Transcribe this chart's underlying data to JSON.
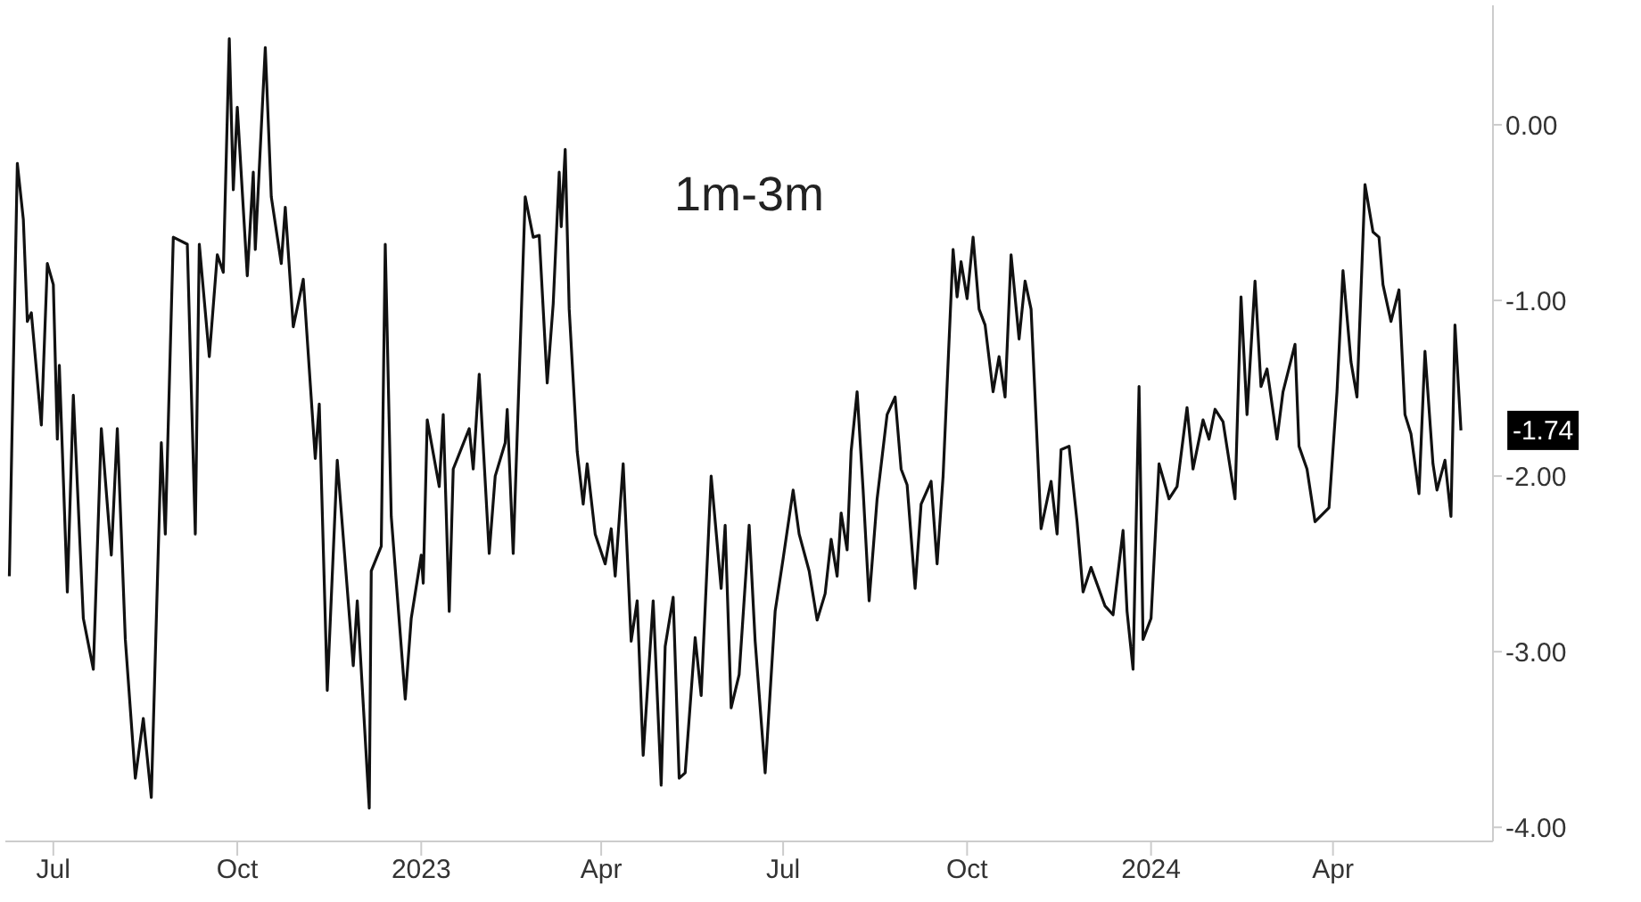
{
  "chart_data": {
    "type": "line",
    "title": "1m-3m",
    "x": [
      "2022-06-09",
      "2022-06-10",
      "2022-06-13",
      "2022-06-16",
      "2022-06-18",
      "2022-06-20",
      "2022-06-25",
      "2022-06-28",
      "2022-07-01",
      "2022-07-03",
      "2022-07-04",
      "2022-07-08",
      "2022-07-11",
      "2022-07-16",
      "2022-07-21",
      "2022-07-25",
      "2022-07-30",
      "2022-08-02",
      "2022-08-06",
      "2022-08-11",
      "2022-08-15",
      "2022-08-19",
      "2022-08-24",
      "2022-08-26",
      "2022-08-30",
      "2022-09-06",
      "2022-09-10",
      "2022-09-12",
      "2022-09-17",
      "2022-09-21",
      "2022-09-24",
      "2022-09-27",
      "2022-09-29",
      "2022-10-01",
      "2022-10-06",
      "2022-10-09",
      "2022-10-10",
      "2022-10-15",
      "2022-10-18",
      "2022-10-23",
      "2022-10-25",
      "2022-10-29",
      "2022-11-03",
      "2022-11-06",
      "2022-11-09",
      "2022-11-11",
      "2022-11-15",
      "2022-11-20",
      "2022-11-28",
      "2022-11-30",
      "2022-12-06",
      "2022-12-07",
      "2022-12-12",
      "2022-12-14",
      "2022-12-17",
      "2022-12-24",
      "2022-12-27",
      "2023-01-01",
      "2023-01-02",
      "2023-01-04",
      "2023-01-10",
      "2023-01-12",
      "2023-01-15",
      "2023-01-17",
      "2023-01-25",
      "2023-01-27",
      "2023-01-30",
      "2023-02-04",
      "2023-02-07",
      "2023-02-12",
      "2023-02-13",
      "2023-02-16",
      "2023-02-22",
      "2023-02-26",
      "2023-03-01",
      "2023-03-05",
      "2023-03-08",
      "2023-03-11",
      "2023-03-12",
      "2023-03-14",
      "2023-03-16",
      "2023-03-20",
      "2023-03-23",
      "2023-03-25",
      "2023-03-29",
      "2023-04-03",
      "2023-04-06",
      "2023-04-08",
      "2023-04-12",
      "2023-04-16",
      "2023-04-19",
      "2023-04-22",
      "2023-04-27",
      "2023-05-01",
      "2023-05-03",
      "2023-05-07",
      "2023-05-10",
      "2023-05-13",
      "2023-05-18",
      "2023-05-21",
      "2023-05-26",
      "2023-05-31",
      "2023-06-02",
      "2023-06-05",
      "2023-06-09",
      "2023-06-14",
      "2023-06-17",
      "2023-06-22",
      "2023-06-27",
      "2023-07-01",
      "2023-07-06",
      "2023-07-09",
      "2023-07-14",
      "2023-07-18",
      "2023-07-22",
      "2023-07-25",
      "2023-07-28",
      "2023-07-30",
      "2023-08-02",
      "2023-08-04",
      "2023-08-07",
      "2023-08-10",
      "2023-08-13",
      "2023-08-17",
      "2023-08-22",
      "2023-08-26",
      "2023-08-29",
      "2023-09-01",
      "2023-09-05",
      "2023-09-08",
      "2023-09-13",
      "2023-09-16",
      "2023-09-19",
      "2023-09-24",
      "2023-09-26",
      "2023-09-28",
      "2023-10-01",
      "2023-10-04",
      "2023-10-07",
      "2023-10-10",
      "2023-10-14",
      "2023-10-17",
      "2023-10-20",
      "2023-10-23",
      "2023-10-27",
      "2023-10-30",
      "2023-11-02",
      "2023-11-07",
      "2023-11-12",
      "2023-11-15",
      "2023-11-17",
      "2023-11-21",
      "2023-11-25",
      "2023-11-28",
      "2023-12-02",
      "2023-12-09",
      "2023-12-13",
      "2023-12-18",
      "2023-12-20",
      "2023-12-23",
      "2023-12-26",
      "2023-12-28",
      "2024-01-01",
      "2024-01-05",
      "2024-01-10",
      "2024-01-14",
      "2024-01-19",
      "2024-01-22",
      "2024-01-27",
      "2024-01-30",
      "2024-02-02",
      "2024-02-06",
      "2024-02-12",
      "2024-02-15",
      "2024-02-18",
      "2024-02-22",
      "2024-02-25",
      "2024-02-28",
      "2024-03-04",
      "2024-03-07",
      "2024-03-13",
      "2024-03-15",
      "2024-03-19",
      "2024-03-23",
      "2024-03-30",
      "2024-04-03",
      "2024-04-06",
      "2024-04-10",
      "2024-04-13",
      "2024-04-17",
      "2024-04-21",
      "2024-04-24",
      "2024-04-26",
      "2024-04-30",
      "2024-05-04",
      "2024-05-07",
      "2024-05-10",
      "2024-05-14",
      "2024-05-17",
      "2024-05-21",
      "2024-05-23",
      "2024-05-27",
      "2024-05-30",
      "2024-06-01",
      "2024-06-04"
    ],
    "series": [
      {
        "color": "#111111",
        "values": [
          -2.57,
          -1.96,
          -0.22,
          -0.54,
          -1.12,
          -1.07,
          -1.71,
          -0.79,
          -0.91,
          -1.79,
          -1.37,
          -2.66,
          -1.54,
          -2.81,
          -3.1,
          -1.73,
          -2.45,
          -1.73,
          -2.93,
          -3.72,
          -3.38,
          -3.83,
          -1.81,
          -2.33,
          -0.64,
          -0.68,
          -2.33,
          -0.68,
          -1.32,
          -0.74,
          -0.84,
          0.49,
          -0.37,
          0.1,
          -0.86,
          -0.27,
          -0.71,
          0.44,
          -0.41,
          -0.79,
          -0.47,
          -1.15,
          -0.88,
          -1.39,
          -1.9,
          -1.59,
          -3.22,
          -1.91,
          -3.08,
          -2.71,
          -3.89,
          -2.54,
          -2.4,
          -0.68,
          -2.23,
          -3.27,
          -2.81,
          -2.45,
          -2.61,
          -1.68,
          -2.06,
          -1.65,
          -2.77,
          -1.96,
          -1.73,
          -1.96,
          -1.42,
          -2.44,
          -2.0,
          -1.81,
          -1.62,
          -2.44,
          -0.41,
          -0.64,
          -0.63,
          -1.47,
          -1.02,
          -0.27,
          -0.58,
          -0.14,
          -1.05,
          -1.86,
          -2.16,
          -1.93,
          -2.33,
          -2.5,
          -2.3,
          -2.57,
          -1.93,
          -2.94,
          -2.71,
          -3.59,
          -2.71,
          -3.76,
          -2.97,
          -2.69,
          -3.72,
          -3.69,
          -2.92,
          -3.25,
          -2.0,
          -2.64,
          -2.28,
          -3.32,
          -3.13,
          -2.28,
          -2.94,
          -3.69,
          -2.77,
          -2.47,
          -2.08,
          -2.33,
          -2.54,
          -2.82,
          -2.67,
          -2.36,
          -2.57,
          -2.21,
          -2.42,
          -1.86,
          -1.52,
          -2.08,
          -2.71,
          -2.13,
          -1.65,
          -1.55,
          -1.96,
          -2.05,
          -2.64,
          -2.16,
          -2.03,
          -2.5,
          -2.0,
          -0.71,
          -0.98,
          -0.78,
          -0.99,
          -0.64,
          -1.05,
          -1.14,
          -1.52,
          -1.32,
          -1.55,
          -0.74,
          -1.22,
          -0.89,
          -1.05,
          -2.3,
          -2.03,
          -2.33,
          -1.85,
          -1.83,
          -2.26,
          -2.66,
          -2.52,
          -2.74,
          -2.79,
          -2.31,
          -2.77,
          -3.1,
          -1.49,
          -2.93,
          -2.81,
          -1.93,
          -2.13,
          -2.06,
          -1.61,
          -1.96,
          -1.68,
          -1.79,
          -1.62,
          -1.69,
          -2.13,
          -0.98,
          -1.65,
          -0.89,
          -1.49,
          -1.39,
          -1.79,
          -1.52,
          -1.25,
          -1.83,
          -1.96,
          -2.26,
          -2.18,
          -1.52,
          -0.83,
          -1.35,
          -1.55,
          -0.34,
          -0.61,
          -0.64,
          -0.91,
          -1.12,
          -0.94,
          -1.65,
          -1.76,
          -2.1,
          -1.29,
          -1.93,
          -2.08,
          -1.91,
          -2.23,
          -1.14,
          -1.74
        ]
      }
    ],
    "xlim": [
      "2022-06-07",
      "2024-06-20"
    ],
    "xticks": [
      {
        "value": "2022-07-01",
        "label": "Jul"
      },
      {
        "value": "2022-10-01",
        "label": "Oct"
      },
      {
        "value": "2023-01-01",
        "label": "2023"
      },
      {
        "value": "2023-04-01",
        "label": "Apr"
      },
      {
        "value": "2023-07-01",
        "label": "Jul"
      },
      {
        "value": "2023-10-01",
        "label": "Oct"
      },
      {
        "value": "2024-01-01",
        "label": "2024"
      },
      {
        "value": "2024-04-01",
        "label": "Apr"
      }
    ],
    "ylim": [
      -4.08,
      0.68
    ],
    "yticks": [
      {
        "value": 0,
        "label": "0.00"
      },
      {
        "value": -1,
        "label": "-1.00"
      },
      {
        "value": -2,
        "label": "-2.00"
      },
      {
        "value": -3,
        "label": "-3.00"
      },
      {
        "value": -4,
        "label": "-4.00"
      }
    ],
    "annotations": [
      {
        "text": "-1.74",
        "x": "2024-06-04",
        "y": -1.74
      }
    ],
    "grid": false,
    "marker": "none",
    "line_style": "solid"
  }
}
